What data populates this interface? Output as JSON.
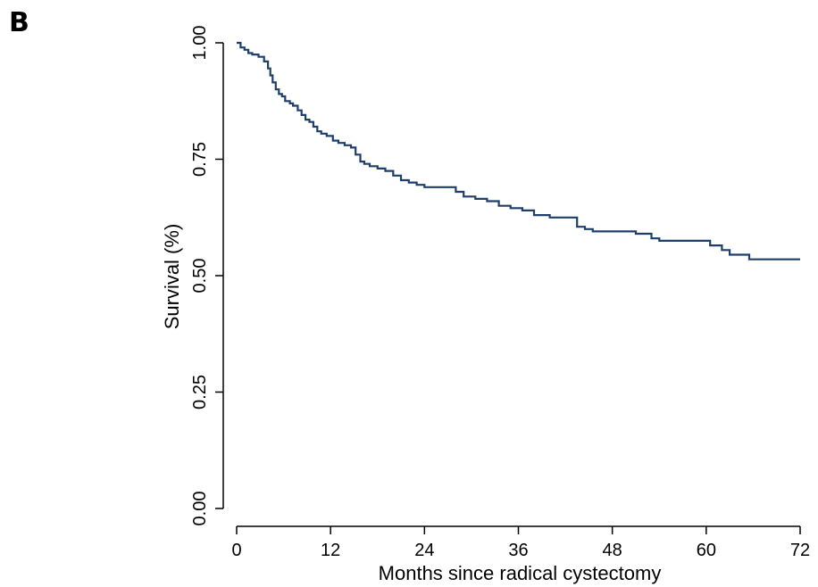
{
  "panel_label": "B",
  "chart_data": {
    "type": "line",
    "title": "",
    "xlabel": "Months since radical cystectomy",
    "ylabel": "Survival (%)",
    "xlim": [
      0,
      72
    ],
    "ylim": [
      0,
      1
    ],
    "x_ticks": [
      0,
      12,
      24,
      36,
      48,
      60,
      72
    ],
    "x_tick_labels": [
      "0",
      "12",
      "24",
      "36",
      "48",
      "60",
      "72"
    ],
    "y_ticks": [
      0,
      0.25,
      0.5,
      0.75,
      1.0
    ],
    "y_tick_labels": [
      "0.00",
      "0.25",
      "0.50",
      "0.75",
      "1.00"
    ],
    "grid": false,
    "step": true,
    "line_color": "#1f3f6b",
    "series": [
      {
        "x": [
          0,
          0.5,
          1.0,
          1.5,
          2.0,
          2.8,
          3.5,
          4.0,
          4.3,
          4.6,
          5.0,
          5.4,
          5.8,
          6.2,
          6.8,
          7.2,
          7.8,
          8.3,
          8.8,
          9.3,
          9.8,
          10.3,
          10.8,
          11.5,
          12.3,
          13.0,
          13.8,
          14.6,
          15.2,
          15.8,
          16.3,
          17.0,
          18.0,
          19.0,
          20.0,
          21.0,
          22.0,
          23.0,
          24.0,
          25.5,
          26.5,
          28.0,
          29.0,
          30.5,
          32.0,
          33.5,
          35.0,
          36.5,
          38.0,
          40.0,
          42.0,
          43.5,
          44.5,
          45.5,
          48.5,
          51.0,
          53.0,
          54.0,
          57.5,
          60.5,
          62.0,
          63.0,
          64.5,
          65.5,
          67.0,
          72.0
        ],
        "y": [
          1.0,
          0.99,
          0.985,
          0.978,
          0.975,
          0.97,
          0.96,
          0.945,
          0.93,
          0.915,
          0.9,
          0.89,
          0.885,
          0.875,
          0.87,
          0.865,
          0.855,
          0.845,
          0.835,
          0.83,
          0.82,
          0.81,
          0.805,
          0.8,
          0.79,
          0.785,
          0.78,
          0.775,
          0.76,
          0.745,
          0.74,
          0.735,
          0.73,
          0.725,
          0.715,
          0.705,
          0.7,
          0.695,
          0.69,
          0.69,
          0.69,
          0.68,
          0.67,
          0.665,
          0.66,
          0.65,
          0.645,
          0.64,
          0.63,
          0.625,
          0.625,
          0.605,
          0.6,
          0.595,
          0.595,
          0.59,
          0.58,
          0.575,
          0.575,
          0.565,
          0.555,
          0.545,
          0.545,
          0.535,
          0.535,
          0.535
        ]
      }
    ]
  }
}
